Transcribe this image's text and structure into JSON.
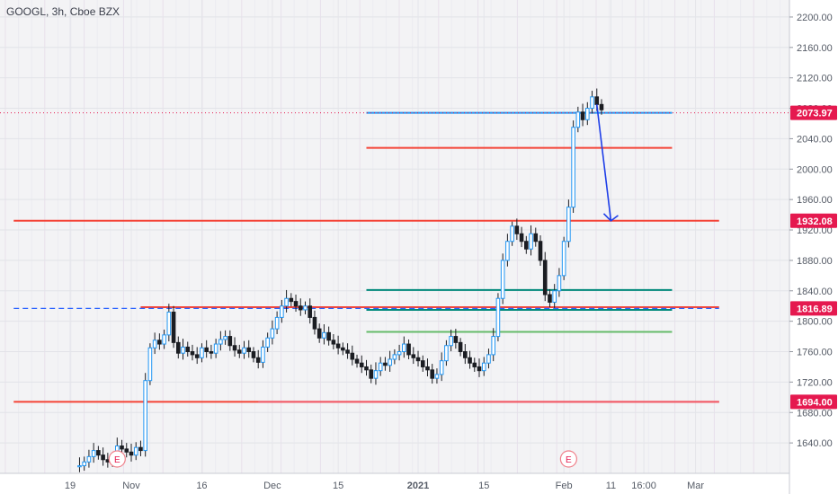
{
  "header": {
    "symbol_label": "GOOGL, 3h, Cboe BZX"
  },
  "chart_data": {
    "type": "candlestick",
    "title": "GOOGL, 3h, Cboe BZX",
    "ylim": [
      1600,
      2220
    ],
    "y_ticks": [
      1640,
      1680,
      1720,
      1760,
      1800,
      1840,
      1880,
      1920,
      1960,
      2000,
      2040,
      2080,
      2120,
      2160,
      2200
    ],
    "y_tick_labels": [
      "1640.00",
      "1680.00",
      "1720.00",
      "1760.00",
      "1800.00",
      "1840.00",
      "1880.00",
      "1920.00",
      "1960.00",
      "2000.00",
      "2040.00",
      "2080.00",
      "2120.00",
      "2160.00",
      "2200.00"
    ],
    "x_ticks": [
      {
        "label": "19",
        "date": "2020-10-19"
      },
      {
        "label": "Nov",
        "date": "2020-11-01"
      },
      {
        "label": "16",
        "date": "2020-11-16"
      },
      {
        "label": "Dec",
        "date": "2020-12-01"
      },
      {
        "label": "15",
        "date": "2020-12-15"
      },
      {
        "label": "2021",
        "date": "2021-01-01"
      },
      {
        "label": "15",
        "date": "2021-01-15"
      },
      {
        "label": "Feb",
        "date": "2021-02-01"
      },
      {
        "label": "11",
        "date": "2021-02-11"
      },
      {
        "label": "16:00",
        "date": "2021-02-18"
      },
      {
        "label": "Mar",
        "date": "2021-03-01"
      }
    ],
    "price_markers": [
      {
        "label": "2073.97",
        "value": 2073.97,
        "color": "#e5194f"
      },
      {
        "label": "1932.08",
        "value": 1932.08,
        "color": "#e5194f"
      },
      {
        "label": "1816.89",
        "value": 1816.89,
        "color": "#e5194f"
      },
      {
        "label": "1694.00",
        "value": 1694.0,
        "color": "#e5194f"
      }
    ],
    "earnings_markers": [
      {
        "label": "E",
        "date": "2020-10-29"
      },
      {
        "label": "E",
        "date": "2021-02-02"
      }
    ],
    "levels": [
      {
        "value": 1932.08,
        "from": "2020-10-07",
        "to": "2021-03-06",
        "color": "#f44336"
      },
      {
        "value": 1694.0,
        "from": "2020-10-07",
        "to": "2021-03-06",
        "color": "#f44336"
      },
      {
        "value": 1694.0,
        "from": "2020-11-28",
        "to": "2021-03-06",
        "color": "#f25d6b"
      },
      {
        "value": 1818.5,
        "from": "2020-11-03",
        "to": "2021-03-06",
        "color": "#f44336"
      },
      {
        "value": 1816.89,
        "from": "2020-10-07",
        "to": "2021-03-06",
        "color": "#2962ff",
        "dashed": true
      },
      {
        "value": 2074,
        "from": "2020-12-21",
        "to": "2021-02-24",
        "color": "#2196f3"
      },
      {
        "value": 2028,
        "from": "2020-12-21",
        "to": "2021-02-24",
        "color": "#f44336"
      },
      {
        "value": 1841,
        "from": "2020-12-21",
        "to": "2021-02-24",
        "color": "#00897b"
      },
      {
        "value": 1815,
        "from": "2020-12-21",
        "to": "2021-02-24",
        "color": "#00897b"
      },
      {
        "value": 1786,
        "from": "2020-12-21",
        "to": "2021-02-24",
        "color": "#66bb6a"
      }
    ],
    "arrow": {
      "from_date": "2021-02-08",
      "from_value": 2085,
      "to_date": "2021-02-11",
      "to_value": 1932,
      "color": "#1e3ee8"
    },
    "series": [
      {
        "values": [
          [
            "2020-10-21",
            1610
          ],
          [
            "2020-10-22",
            1615
          ],
          [
            "2020-10-23",
            1622
          ],
          [
            "2020-10-24",
            1630
          ],
          [
            "2020-10-25",
            1624
          ],
          [
            "2020-10-26",
            1618
          ],
          [
            "2020-10-27",
            1615
          ],
          [
            "2020-10-28",
            1620
          ],
          [
            "2020-10-29",
            1636
          ],
          [
            "2020-10-30",
            1632
          ],
          [
            "2020-10-31",
            1628
          ],
          [
            "2020-11-01",
            1624
          ],
          [
            "2020-11-02",
            1634
          ],
          [
            "2020-11-03",
            1630
          ],
          [
            "2020-11-04",
            1722
          ],
          [
            "2020-11-05",
            1765
          ],
          [
            "2020-11-06",
            1775
          ],
          [
            "2020-11-07",
            1770
          ],
          [
            "2020-11-08",
            1782
          ],
          [
            "2020-11-09",
            1812
          ],
          [
            "2020-11-10",
            1772
          ],
          [
            "2020-11-11",
            1758
          ],
          [
            "2020-11-12",
            1766
          ],
          [
            "2020-11-13",
            1760
          ],
          [
            "2020-11-14",
            1756
          ],
          [
            "2020-11-15",
            1752
          ],
          [
            "2020-11-16",
            1765
          ],
          [
            "2020-11-17",
            1760
          ],
          [
            "2020-11-18",
            1758
          ],
          [
            "2020-11-19",
            1770
          ],
          [
            "2020-11-20",
            1776
          ],
          [
            "2020-11-21",
            1780
          ],
          [
            "2020-11-22",
            1768
          ],
          [
            "2020-11-23",
            1762
          ],
          [
            "2020-11-24",
            1758
          ],
          [
            "2020-11-25",
            1765
          ],
          [
            "2020-11-26",
            1760
          ],
          [
            "2020-11-27",
            1752
          ],
          [
            "2020-11-28",
            1746
          ],
          [
            "2020-11-29",
            1766
          ],
          [
            "2020-11-30",
            1778
          ],
          [
            "2020-12-01",
            1790
          ],
          [
            "2020-12-02",
            1805
          ],
          [
            "2020-12-03",
            1820
          ],
          [
            "2020-12-04",
            1830
          ],
          [
            "2020-12-05",
            1826
          ],
          [
            "2020-12-06",
            1820
          ],
          [
            "2020-12-07",
            1815
          ],
          [
            "2020-12-08",
            1820
          ],
          [
            "2020-12-09",
            1805
          ],
          [
            "2020-12-10",
            1790
          ],
          [
            "2020-12-11",
            1778
          ],
          [
            "2020-12-12",
            1785
          ],
          [
            "2020-12-13",
            1775
          ],
          [
            "2020-12-14",
            1770
          ],
          [
            "2020-12-15",
            1765
          ],
          [
            "2020-12-16",
            1762
          ],
          [
            "2020-12-17",
            1758
          ],
          [
            "2020-12-18",
            1750
          ],
          [
            "2020-12-19",
            1745
          ],
          [
            "2020-12-20",
            1740
          ],
          [
            "2020-12-21",
            1736
          ],
          [
            "2020-12-22",
            1725
          ],
          [
            "2020-12-23",
            1735
          ],
          [
            "2020-12-24",
            1745
          ],
          [
            "2020-12-25",
            1742
          ],
          [
            "2020-12-26",
            1750
          ],
          [
            "2020-12-27",
            1756
          ],
          [
            "2020-12-28",
            1760
          ],
          [
            "2020-12-29",
            1770
          ],
          [
            "2020-12-30",
            1756
          ],
          [
            "2020-12-31",
            1752
          ],
          [
            "2021-01-01",
            1748
          ],
          [
            "2021-01-02",
            1740
          ],
          [
            "2021-01-03",
            1736
          ],
          [
            "2021-01-04",
            1725
          ],
          [
            "2021-01-05",
            1730
          ],
          [
            "2021-01-06",
            1748
          ],
          [
            "2021-01-07",
            1768
          ],
          [
            "2021-01-08",
            1780
          ],
          [
            "2021-01-09",
            1772
          ],
          [
            "2021-01-10",
            1760
          ],
          [
            "2021-01-11",
            1752
          ],
          [
            "2021-01-12",
            1745
          ],
          [
            "2021-01-13",
            1740
          ],
          [
            "2021-01-14",
            1735
          ],
          [
            "2021-01-15",
            1745
          ],
          [
            "2021-01-16",
            1756
          ],
          [
            "2021-01-17",
            1780
          ],
          [
            "2021-01-18",
            1830
          ],
          [
            "2021-01-19",
            1880
          ],
          [
            "2021-01-20",
            1905
          ],
          [
            "2021-01-21",
            1925
          ],
          [
            "2021-01-22",
            1915
          ],
          [
            "2021-01-23",
            1905
          ],
          [
            "2021-01-24",
            1895
          ],
          [
            "2021-01-25",
            1915
          ],
          [
            "2021-01-26",
            1905
          ],
          [
            "2021-01-27",
            1880
          ],
          [
            "2021-01-28",
            1835
          ],
          [
            "2021-01-29",
            1825
          ],
          [
            "2021-01-30",
            1840
          ],
          [
            "2021-01-31",
            1860
          ],
          [
            "2021-02-01",
            1905
          ],
          [
            "2021-02-02",
            1950
          ],
          [
            "2021-02-03",
            2055
          ],
          [
            "2021-02-04",
            2075
          ],
          [
            "2021-02-05",
            2065
          ],
          [
            "2021-02-06",
            2080
          ],
          [
            "2021-02-07",
            2095
          ],
          [
            "2021-02-08",
            2085
          ],
          [
            "2021-02-09",
            2078
          ]
        ]
      }
    ]
  }
}
